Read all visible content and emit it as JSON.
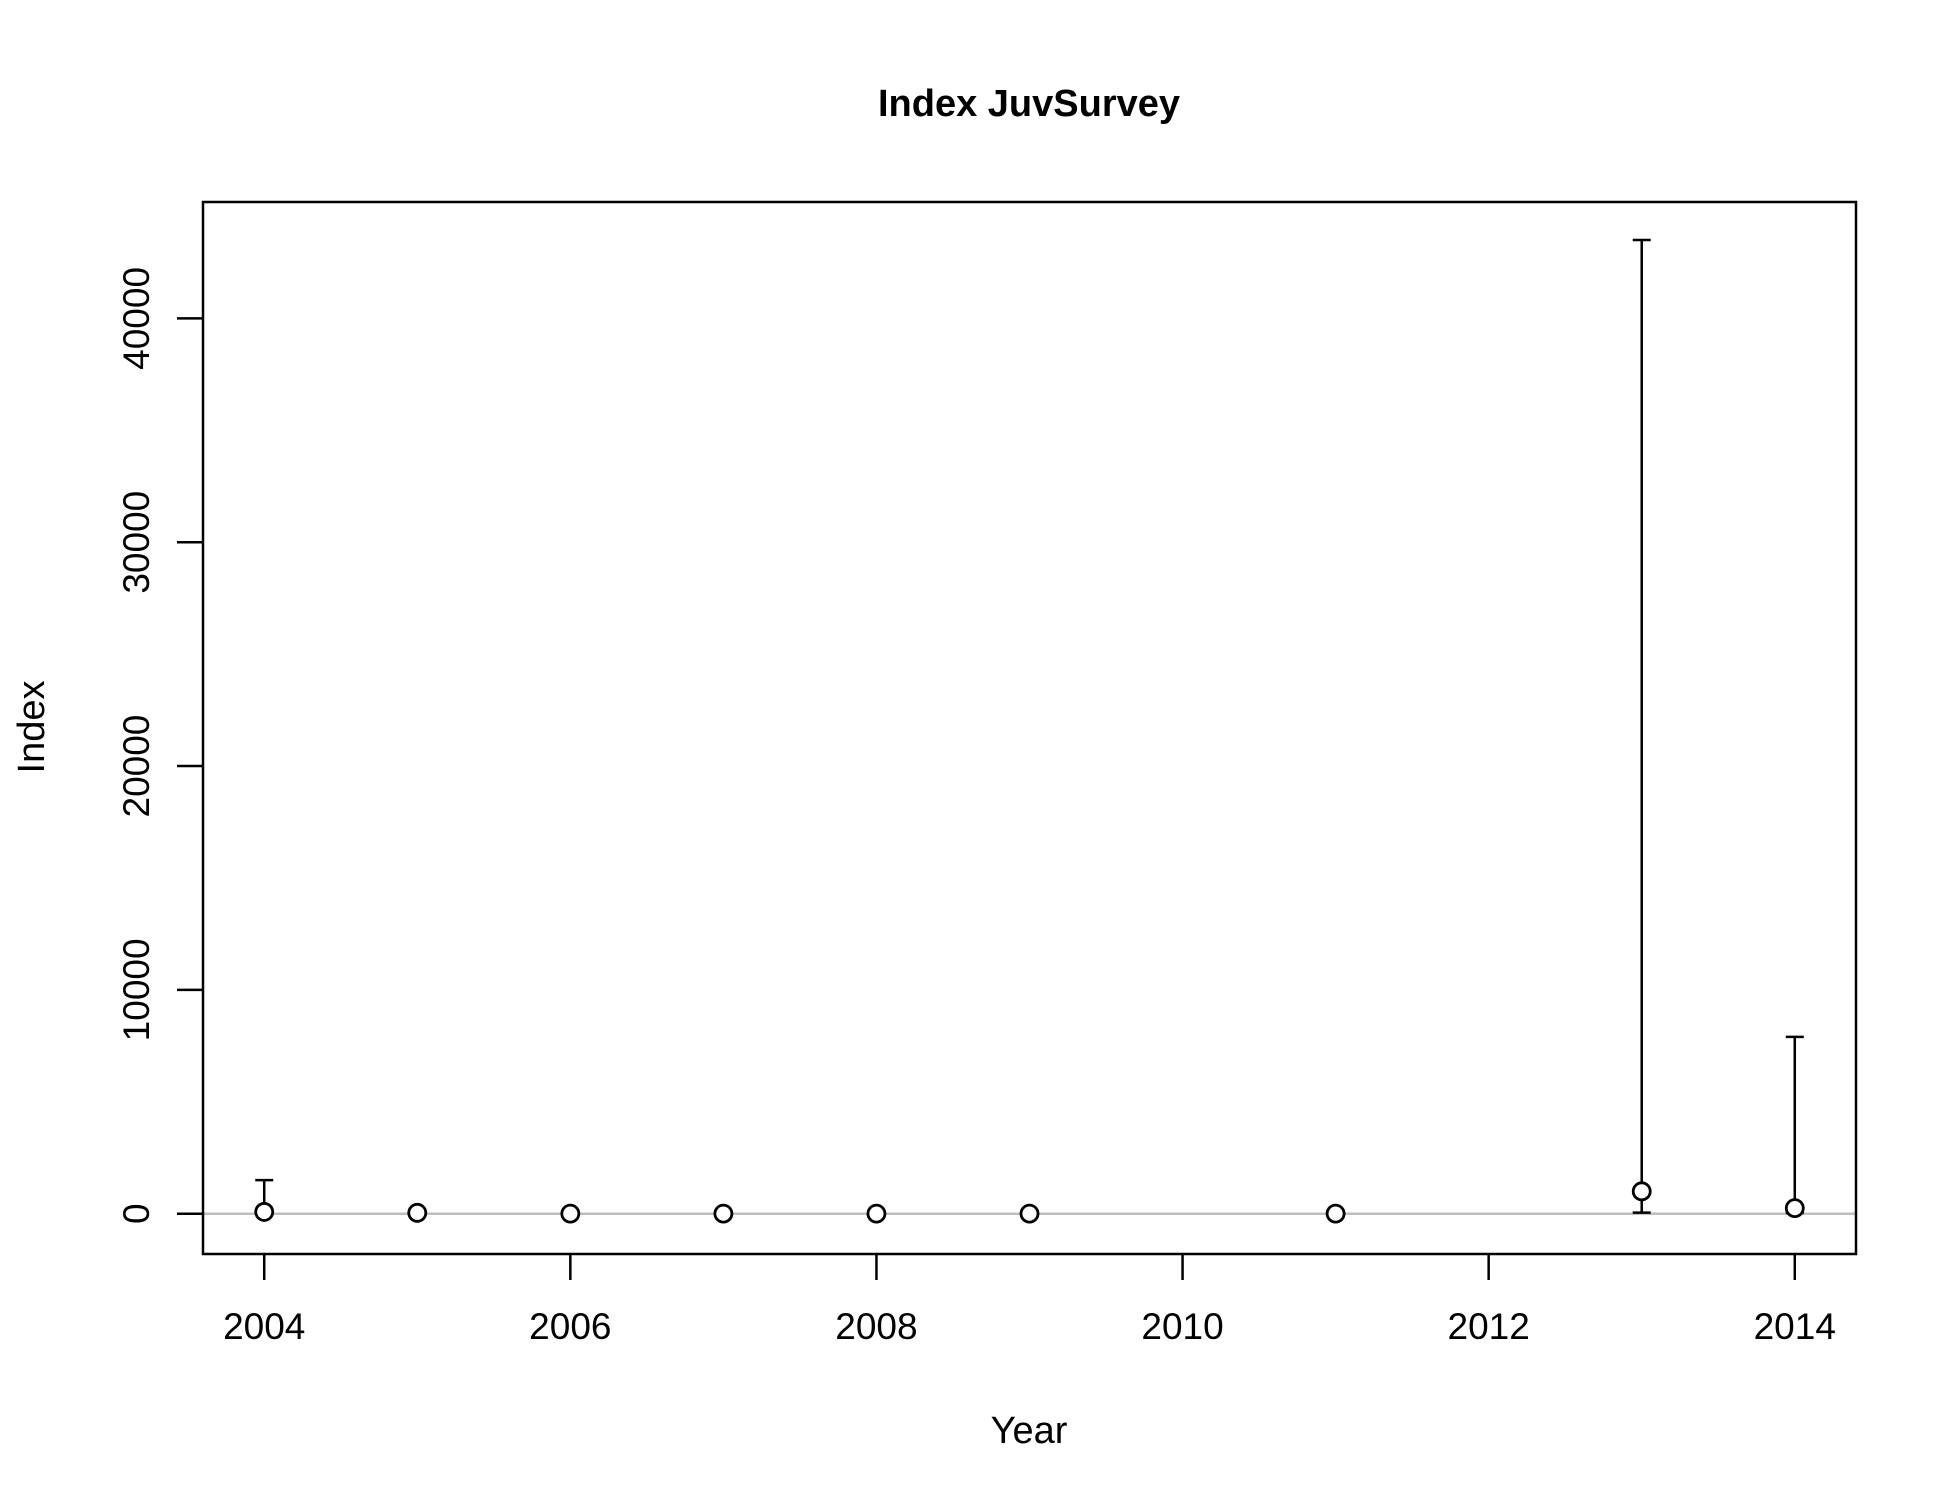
{
  "chart_data": {
    "type": "scatter",
    "title": "Index JuvSurvey",
    "xlabel": "Year",
    "ylabel": "Index",
    "xlim": [
      2003.6,
      2014.4
    ],
    "ylim": [
      -1800,
      45200
    ],
    "xticks": [
      2004,
      2006,
      2008,
      2010,
      2012,
      2014
    ],
    "yticks": [
      0,
      10000,
      20000,
      30000,
      40000
    ],
    "reference_line": {
      "y": 0,
      "color": "#bebebe"
    },
    "colors": {
      "points": "#000000",
      "error_bars": "#000000",
      "frame": "#000000"
    },
    "x": [
      2004,
      2005,
      2006,
      2007,
      2008,
      2009,
      2011,
      2013,
      2014
    ],
    "values": [
      80,
      40,
      5,
      5,
      5,
      5,
      5,
      1000,
      250
    ],
    "lower": [
      30,
      20,
      2,
      2,
      2,
      2,
      2,
      50,
      40
    ],
    "upper": [
      1500,
      60,
      10,
      10,
      10,
      10,
      10,
      43500,
      7900
    ]
  }
}
